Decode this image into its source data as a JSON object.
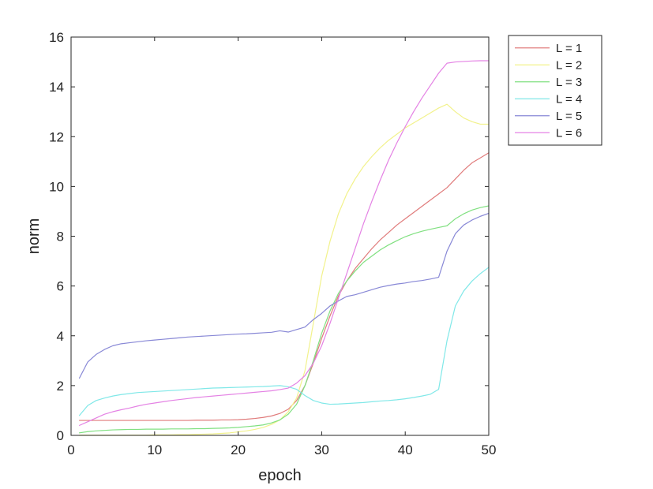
{
  "chart_data": {
    "type": "line",
    "xlabel": "epoch",
    "ylabel": "norm",
    "xlim": [
      0,
      50
    ],
    "ylim": [
      0,
      16
    ],
    "xticks": [
      0,
      10,
      20,
      30,
      40,
      50
    ],
    "yticks": [
      0,
      2,
      4,
      6,
      8,
      10,
      12,
      14,
      16
    ],
    "grid": false,
    "legend_position": "outside-top-right",
    "x": [
      1,
      2,
      3,
      4,
      5,
      6,
      7,
      8,
      9,
      10,
      11,
      12,
      13,
      14,
      15,
      16,
      17,
      18,
      19,
      20,
      21,
      22,
      23,
      24,
      25,
      26,
      27,
      28,
      29,
      30,
      31,
      32,
      33,
      34,
      35,
      36,
      37,
      38,
      39,
      40,
      41,
      42,
      43,
      44,
      45,
      46,
      47,
      48,
      49,
      50
    ],
    "series": [
      {
        "name": "L = 1",
        "color": "#e07b7b",
        "values": [
          0.6,
          0.6,
          0.6,
          0.6,
          0.6,
          0.6,
          0.6,
          0.6,
          0.6,
          0.6,
          0.6,
          0.6,
          0.6,
          0.6,
          0.61,
          0.61,
          0.61,
          0.62,
          0.62,
          0.63,
          0.65,
          0.68,
          0.72,
          0.78,
          0.88,
          1.05,
          1.4,
          2.0,
          2.9,
          3.9,
          4.8,
          5.6,
          6.2,
          6.7,
          7.1,
          7.5,
          7.85,
          8.15,
          8.45,
          8.7,
          8.95,
          9.2,
          9.45,
          9.7,
          9.95,
          10.3,
          10.65,
          10.95,
          11.15,
          11.35
        ]
      },
      {
        "name": "L = 2",
        "color": "#f2f28c",
        "values": [
          0.01,
          0.01,
          0.01,
          0.01,
          0.01,
          0.01,
          0.01,
          0.01,
          0.01,
          0.02,
          0.02,
          0.02,
          0.03,
          0.03,
          0.04,
          0.05,
          0.06,
          0.08,
          0.1,
          0.14,
          0.18,
          0.24,
          0.32,
          0.44,
          0.62,
          0.95,
          1.5,
          2.6,
          4.5,
          6.4,
          7.8,
          8.9,
          9.7,
          10.3,
          10.8,
          11.2,
          11.55,
          11.85,
          12.1,
          12.35,
          12.55,
          12.75,
          12.95,
          13.15,
          13.3,
          13.0,
          12.75,
          12.6,
          12.5,
          12.5
        ]
      },
      {
        "name": "L = 3",
        "color": "#80e080",
        "values": [
          0.1,
          0.15,
          0.18,
          0.2,
          0.22,
          0.23,
          0.24,
          0.24,
          0.25,
          0.25,
          0.25,
          0.26,
          0.26,
          0.26,
          0.27,
          0.27,
          0.28,
          0.29,
          0.3,
          0.32,
          0.35,
          0.38,
          0.42,
          0.5,
          0.62,
          0.85,
          1.25,
          2.0,
          3.0,
          4.1,
          5.0,
          5.7,
          6.2,
          6.6,
          6.95,
          7.2,
          7.45,
          7.65,
          7.82,
          7.98,
          8.1,
          8.2,
          8.28,
          8.35,
          8.42,
          8.7,
          8.9,
          9.05,
          9.15,
          9.22
        ]
      },
      {
        "name": "L = 4",
        "color": "#80e8e8",
        "values": [
          0.8,
          1.2,
          1.4,
          1.5,
          1.58,
          1.64,
          1.68,
          1.72,
          1.74,
          1.76,
          1.78,
          1.8,
          1.82,
          1.84,
          1.86,
          1.88,
          1.9,
          1.91,
          1.92,
          1.93,
          1.94,
          1.95,
          1.96,
          1.98,
          2.0,
          1.95,
          1.85,
          1.6,
          1.4,
          1.3,
          1.25,
          1.26,
          1.28,
          1.3,
          1.32,
          1.35,
          1.38,
          1.4,
          1.43,
          1.47,
          1.52,
          1.58,
          1.65,
          1.85,
          3.8,
          5.2,
          5.8,
          6.2,
          6.5,
          6.75
        ]
      },
      {
        "name": "L = 5",
        "color": "#8888d6",
        "values": [
          2.3,
          2.95,
          3.25,
          3.45,
          3.6,
          3.68,
          3.72,
          3.76,
          3.8,
          3.83,
          3.86,
          3.89,
          3.92,
          3.95,
          3.97,
          3.99,
          4.01,
          4.03,
          4.05,
          4.07,
          4.08,
          4.1,
          4.12,
          4.14,
          4.2,
          4.15,
          4.25,
          4.35,
          4.65,
          4.9,
          5.2,
          5.4,
          5.58,
          5.65,
          5.75,
          5.85,
          5.95,
          6.02,
          6.08,
          6.12,
          6.18,
          6.22,
          6.28,
          6.35,
          7.4,
          8.1,
          8.45,
          8.65,
          8.8,
          8.92
        ]
      },
      {
        "name": "L = 6",
        "color": "#e482e4",
        "values": [
          0.4,
          0.55,
          0.7,
          0.85,
          0.95,
          1.03,
          1.1,
          1.18,
          1.25,
          1.3,
          1.35,
          1.4,
          1.44,
          1.48,
          1.52,
          1.55,
          1.58,
          1.61,
          1.64,
          1.67,
          1.7,
          1.73,
          1.76,
          1.79,
          1.84,
          1.9,
          2.1,
          2.4,
          2.9,
          3.6,
          4.5,
          5.5,
          6.5,
          7.5,
          8.5,
          9.4,
          10.25,
          11.05,
          11.75,
          12.4,
          13.0,
          13.55,
          14.05,
          14.55,
          14.95,
          15.0,
          15.02,
          15.04,
          15.05,
          15.05
        ]
      }
    ]
  }
}
